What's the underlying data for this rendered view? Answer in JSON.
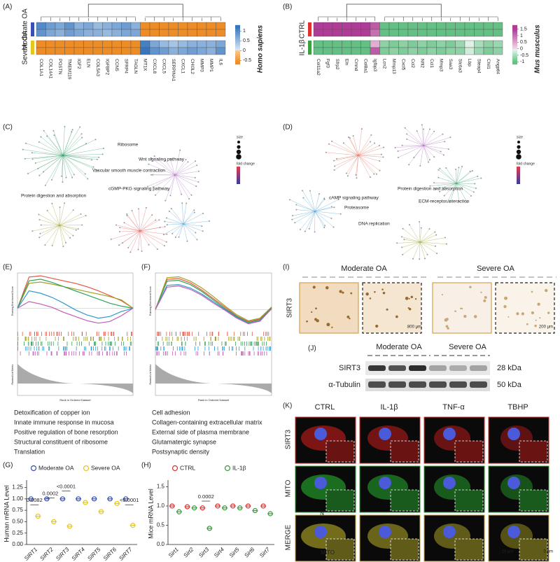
{
  "panel_labels": [
    "(A)",
    "(B)",
    "(C)",
    "(D)",
    "(E)",
    "(F)",
    "(G)",
    "(H)",
    "(I)",
    "(J)",
    "(K)"
  ],
  "panel_a": {
    "type": "heatmap",
    "species": "Homo sapiens",
    "genes": [
      "COL1A1",
      "COL14A1",
      "POSTN",
      "TMEM119",
      "IGF2",
      "ELN",
      "COL5A3",
      "IGFBP2",
      "CCN5",
      "SFRP4",
      "TAGLN",
      "MT1X",
      "CXCL8",
      "CXCL5",
      "SERPINA1",
      "CXCL1",
      "CHI3L2",
      "MMP3",
      "MMP1",
      "IL6"
    ],
    "groups": [
      {
        "name": "Moderate OA",
        "color": "#3a4fb0",
        "rows": [
          [
            1.0,
            0.8,
            0.7,
            0.9,
            0.6,
            0.7,
            0.5,
            0.6,
            0.7,
            0.8,
            0.6,
            -0.6,
            -0.6,
            -0.6,
            -0.6,
            -0.6,
            -0.6,
            -0.6,
            -0.6,
            -0.6
          ],
          [
            0.9,
            0.7,
            0.6,
            0.8,
            0.7,
            0.6,
            0.6,
            0.5,
            0.6,
            0.7,
            0.7,
            -0.6,
            -0.6,
            -0.6,
            -0.6,
            -0.6,
            -0.6,
            -0.6,
            -0.6,
            -0.6
          ]
        ]
      },
      {
        "name": "Severe OA",
        "color": "#e6c619",
        "rows": [
          [
            -0.6,
            -0.6,
            -0.6,
            -0.6,
            -0.6,
            -0.6,
            -0.6,
            -0.6,
            -0.6,
            -0.6,
            -0.6,
            1.1,
            0.7,
            0.5,
            0.4,
            0.5,
            0.6,
            0.6,
            0.6,
            0.7
          ],
          [
            -0.6,
            -0.6,
            -0.6,
            -0.6,
            -0.6,
            -0.6,
            -0.6,
            -0.6,
            -0.6,
            -0.6,
            -0.6,
            1.2,
            0.9,
            0.8,
            0.6,
            0.7,
            0.8,
            0.7,
            0.6,
            0.9
          ]
        ]
      }
    ],
    "colorbar_lim": [
      -0.7,
      1.3
    ],
    "colorbar_ticks": [
      1,
      0.5,
      0,
      -0.5
    ]
  },
  "panel_b": {
    "type": "heatmap",
    "species": "Mus musculus",
    "genes": [
      "Col11a2",
      "Fgf3",
      "Sfrp2",
      "Eln",
      "Cmnd",
      "Col8a1",
      "Igfbp3",
      "Lcn2",
      "Mmp13",
      "Cxcl5",
      "Ccl2",
      "Nfil2",
      "Ccl1",
      "Mmp3",
      "Saa3",
      "Slc6a3",
      "Lbp",
      "Steap4",
      "Chil1",
      "Angptl4"
    ],
    "groups": [
      {
        "name": "CTRL",
        "color": "#e03030",
        "rows": [
          [
            1.5,
            1.5,
            1.5,
            1.5,
            1.5,
            1.5,
            1.2,
            -1,
            -1,
            -1,
            -1,
            -1,
            -1,
            -1,
            -1,
            -1,
            -1,
            -1,
            -1,
            -1
          ],
          [
            1.5,
            1.5,
            1.5,
            1.5,
            1.5,
            1.5,
            1.0,
            -1,
            -1,
            -1,
            -1,
            -1,
            -1,
            -1,
            -1,
            -1,
            -1,
            -1,
            -1,
            -1
          ]
        ]
      },
      {
        "name": "IL-1β",
        "color": "#3aa040",
        "rows": [
          [
            -1,
            -1,
            -1,
            -1,
            -1,
            -1,
            0.4,
            -0.7,
            -0.8,
            -0.7,
            -0.8,
            -0.7,
            -0.8,
            -0.7,
            -0.8,
            -0.6,
            -0.1,
            -0.5,
            -0.7,
            -0.6
          ],
          [
            -1,
            -1,
            -1,
            -1,
            -1,
            -1,
            1.2,
            -0.8,
            -0.7,
            -0.8,
            -0.7,
            -0.8,
            -0.7,
            -0.8,
            -0.7,
            -0.7,
            -0.2,
            -0.6,
            -0.8,
            -0.7
          ]
        ]
      }
    ],
    "colorbar_lim": [
      -1.2,
      1.8
    ],
    "colorbar_ticks": [
      1.5,
      1,
      0.5,
      0,
      -0.5,
      -1
    ]
  },
  "panel_c": {
    "pathways": [
      "Ribosome",
      "Wnt signaling pathway",
      "Vascular smooth muscle contraction",
      "cGMP-PKG signaling pathway",
      "Protein digestion and absorption"
    ],
    "legend": [
      "size",
      "fold change"
    ]
  },
  "panel_d": {
    "pathways": [
      "cAMP signaling pathway",
      "Protein digestion and absorption",
      "Proteasome",
      "ECM-receptor interaction",
      "DNA replication"
    ],
    "legend": [
      "size",
      "fold change"
    ]
  },
  "panel_e": {
    "type": "line",
    "y_label": "Running Enrichment Score",
    "metric_label": "Ranked List Metric",
    "x_label": "Rank in Ordered Dataset",
    "x": [
      0,
      1,
      2,
      3,
      4,
      5,
      6,
      7,
      8,
      9,
      10
    ],
    "ylim": [
      -0.5,
      0.85
    ],
    "series": [
      {
        "name": "Detoxification of copper ion",
        "color": "#e8543f",
        "values": [
          0,
          0.75,
          0.78,
          0.72,
          0.66,
          0.6,
          0.52,
          0.42,
          0.3,
          0.18,
          0
        ]
      },
      {
        "name": "Innate immune response in mucosa",
        "color": "#a3a023",
        "values": [
          0,
          0.6,
          0.63,
          0.58,
          0.52,
          0.46,
          0.4,
          0.34,
          0.28,
          0.2,
          0
        ]
      },
      {
        "name": "Positive regulation of bone resorption",
        "color": "#2fa35a",
        "values": [
          0,
          0.66,
          0.7,
          0.62,
          0.52,
          0.42,
          0.32,
          0.22,
          0.12,
          0.05,
          0
        ]
      },
      {
        "name": "Structural constituent of ribosome",
        "color": "#2f9ad0",
        "values": [
          0,
          0.42,
          0.36,
          0.26,
          0.12,
          -0.04,
          -0.16,
          -0.24,
          -0.2,
          -0.08,
          0
        ]
      },
      {
        "name": "Translation",
        "color": "#c65bb5",
        "values": [
          0,
          0.16,
          0.1,
          0.02,
          -0.1,
          -0.2,
          -0.3,
          -0.36,
          -0.32,
          -0.18,
          0
        ]
      }
    ]
  },
  "panel_f": {
    "type": "line",
    "y_label": "Running Enrichment Score",
    "metric_label": "Ranked List Metric",
    "x_label": "Rank in Ordered Dataset",
    "x": [
      0,
      1,
      2,
      3,
      4,
      5,
      6,
      7,
      8,
      9,
      10
    ],
    "ylim": [
      -0.45,
      0.85
    ],
    "series": [
      {
        "name": "Cell adhesion",
        "color": "#e8543f",
        "values": [
          0,
          0.7,
          0.72,
          0.62,
          0.45,
          0.25,
          0.05,
          -0.15,
          -0.28,
          -0.22,
          0.05
        ]
      },
      {
        "name": "Collagen-containing extracellular matrix",
        "color": "#a3a023",
        "values": [
          0,
          0.74,
          0.76,
          0.66,
          0.5,
          0.3,
          0.08,
          -0.12,
          -0.26,
          -0.2,
          0.06
        ]
      },
      {
        "name": "External side of plasma membrane",
        "color": "#2fa35a",
        "values": [
          0,
          0.66,
          0.68,
          0.58,
          0.42,
          0.22,
          0.02,
          -0.16,
          -0.3,
          -0.24,
          0.04
        ]
      },
      {
        "name": "Glutamatergic synapse",
        "color": "#2f9ad0",
        "values": [
          0,
          0.56,
          0.58,
          0.5,
          0.36,
          0.18,
          0,
          -0.18,
          -0.32,
          -0.26,
          0.02
        ]
      },
      {
        "name": "Postsynaptic density",
        "color": "#c65bb5",
        "values": [
          0,
          0.52,
          0.55,
          0.47,
          0.33,
          0.15,
          -0.02,
          -0.2,
          -0.33,
          -0.27,
          0.02
        ]
      }
    ]
  },
  "panel_g": {
    "type": "dot",
    "y_label": "Human mRNA Level",
    "categories": [
      "SIRT1",
      "SIRT2",
      "SIRT3",
      "SIRT4",
      "SIRT5",
      "SIRT6",
      "SIRT7"
    ],
    "series": [
      {
        "name": "Moderate OA",
        "color": "#3a4fb0",
        "values": [
          1.0,
          1.0,
          1.0,
          1.0,
          1.0,
          1.0,
          1.0
        ]
      },
      {
        "name": "Severe OA",
        "color": "#e6c619",
        "values": [
          0.62,
          0.5,
          0.4,
          0.92,
          0.72,
          0.9,
          0.42
        ]
      }
    ],
    "ylim": [
      0,
      1.35
    ],
    "yticks": [
      {
        "value": 0,
        "label": "0.00"
      },
      0.25,
      {
        "value": 0.5,
        "label": "0.50"
      },
      0.75,
      {
        "value": 1,
        "label": "1.00"
      },
      1.25
    ],
    "p_values": [
      "0.0082",
      "0.0002",
      "<0.0001",
      "<0.0001"
    ]
  },
  "panel_h": {
    "type": "dot",
    "y_label": "Mice mRNA Level",
    "categories": [
      "Sirt1",
      "Sirt2",
      "Sirt3",
      "Sirt4",
      "Sirt5",
      "Sirt6",
      "Sirt7"
    ],
    "series": [
      {
        "name": "CTRL",
        "color": "#e03030",
        "values": [
          1.0,
          0.98,
          0.95,
          1.0,
          1.0,
          1.0,
          1.0
        ]
      },
      {
        "name": "IL-1β",
        "color": "#3a9a3a",
        "values": [
          0.85,
          0.95,
          0.42,
          0.95,
          0.95,
          0.88,
          0.8
        ]
      }
    ],
    "ylim": [
      0,
      1.6
    ],
    "yticks": [
      {
        "value": 0,
        "label": "0.0"
      },
      0.5,
      {
        "value": 1,
        "label": "1.0"
      },
      1.5
    ],
    "p_values": [
      "0.0002"
    ]
  },
  "panel_i": {
    "groups": [
      "Moderate OA",
      "Severe OA"
    ],
    "stain": "SIRT3",
    "scale_bars": [
      "800 μm",
      "200 μm"
    ]
  },
  "panel_j": {
    "groups": [
      "Moderate OA",
      "Severe OA"
    ],
    "proteins": [
      "SIRT3",
      "α-Tubulin"
    ],
    "sizes": [
      "28 kDa",
      "50 kDa"
    ]
  },
  "panel_k": {
    "conditions": [
      "CTRL",
      "IL-1β",
      "TNF-α",
      "TBHP"
    ],
    "channels": [
      "SIRT3",
      "MITO",
      "MERGE"
    ],
    "annotations": [
      "N",
      "MITO"
    ],
    "scale_bars": [
      "20 μm",
      "5 μm"
    ]
  }
}
